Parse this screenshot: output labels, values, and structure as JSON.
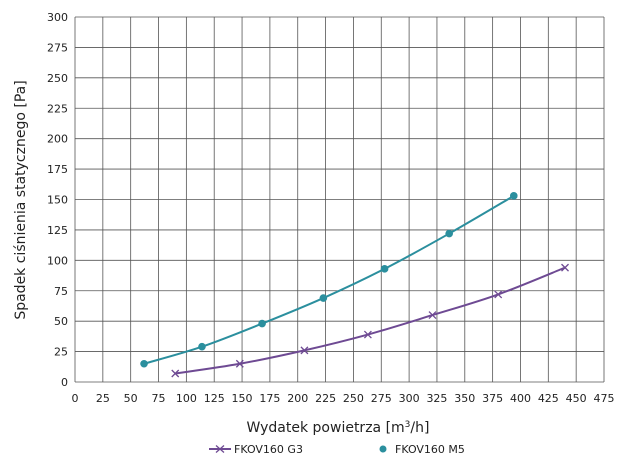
{
  "chart_data": {
    "type": "line",
    "title": "",
    "xlabel_main": "Wydatek powietrza [m",
    "xlabel_sup": "3",
    "xlabel_tail": "/h]",
    "ylabel": "Spadek ciśnienia statycznego [Pa]",
    "xlim": [
      0,
      475
    ],
    "ylim": [
      0,
      300
    ],
    "xticks": [
      "0",
      "25",
      "50",
      "75",
      "100",
      "125",
      "150",
      "175",
      "200",
      "225",
      "250",
      "275",
      "300",
      "325",
      "350",
      "375",
      "400",
      "425",
      "450",
      "475"
    ],
    "yticks": [
      "0",
      "25",
      "50",
      "75",
      "100",
      "125",
      "150",
      "175",
      "200",
      "225",
      "250",
      "275",
      "300"
    ],
    "grid": true,
    "legend_position": "bottom",
    "series": [
      {
        "name": "FKOV160 G3",
        "color": "#6e4a93",
        "marker": "x",
        "points": [
          [
            90,
            7
          ],
          [
            148,
            15
          ],
          [
            206,
            26
          ],
          [
            263,
            39
          ],
          [
            321,
            55
          ],
          [
            380,
            72
          ],
          [
            440,
            94
          ]
        ]
      },
      {
        "name": "FKOV160 M5",
        "color": "#2b8f9e",
        "marker": "circle",
        "points": [
          [
            62,
            15
          ],
          [
            114,
            29
          ],
          [
            168,
            48
          ],
          [
            223,
            69
          ],
          [
            278,
            93
          ],
          [
            336,
            122
          ],
          [
            394,
            153
          ]
        ]
      }
    ]
  }
}
